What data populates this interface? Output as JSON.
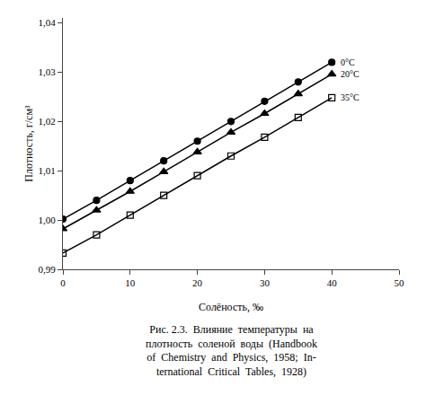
{
  "chart_data": {
    "type": "line",
    "xlabel": "Солёность, ‰",
    "ylabel": "Плотность, г/см³",
    "xlim": [
      0,
      50
    ],
    "ylim": [
      0.99,
      1.041
    ],
    "xticks": [
      0,
      10,
      20,
      30,
      40,
      50
    ],
    "yticks": [
      {
        "value": 0.99,
        "label": "0,99"
      },
      {
        "value": 1.0,
        "label": "1,00"
      },
      {
        "value": 1.01,
        "label": "1,01"
      },
      {
        "value": 1.02,
        "label": "1,02"
      },
      {
        "value": 1.03,
        "label": "1,03"
      },
      {
        "value": 1.04,
        "label": "1,04"
      }
    ],
    "grid": false,
    "x": [
      0,
      5,
      10,
      15,
      20,
      25,
      30,
      35,
      40
    ],
    "series": [
      {
        "name": "0°C",
        "color": "#000000",
        "marker": "circle",
        "values": [
          1.0002,
          1.004,
          1.008,
          1.012,
          1.016,
          1.02,
          1.0241,
          1.028,
          1.032
        ]
      },
      {
        "name": "20°C",
        "color": "#000000",
        "marker": "triangle-up",
        "values": [
          0.9982,
          1.002,
          1.0058,
          1.0098,
          1.0138,
          1.0178,
          1.0216,
          1.0256,
          1.0296
        ]
      },
      {
        "name": "35°C",
        "color": "#000000",
        "marker": "square-open",
        "values": [
          0.9933,
          0.997,
          1.001,
          1.005,
          1.009,
          1.013,
          1.0168,
          1.0208,
          1.0248
        ]
      }
    ],
    "caption": [
      "Рис. 2.3.  Влияние  температуры  на",
      "плотность  соленой  воды  (Handbook",
      "of  Chemistry  and  Physics,  1958;  In-",
      "ternational  Critical  Tables,  1928)"
    ]
  }
}
